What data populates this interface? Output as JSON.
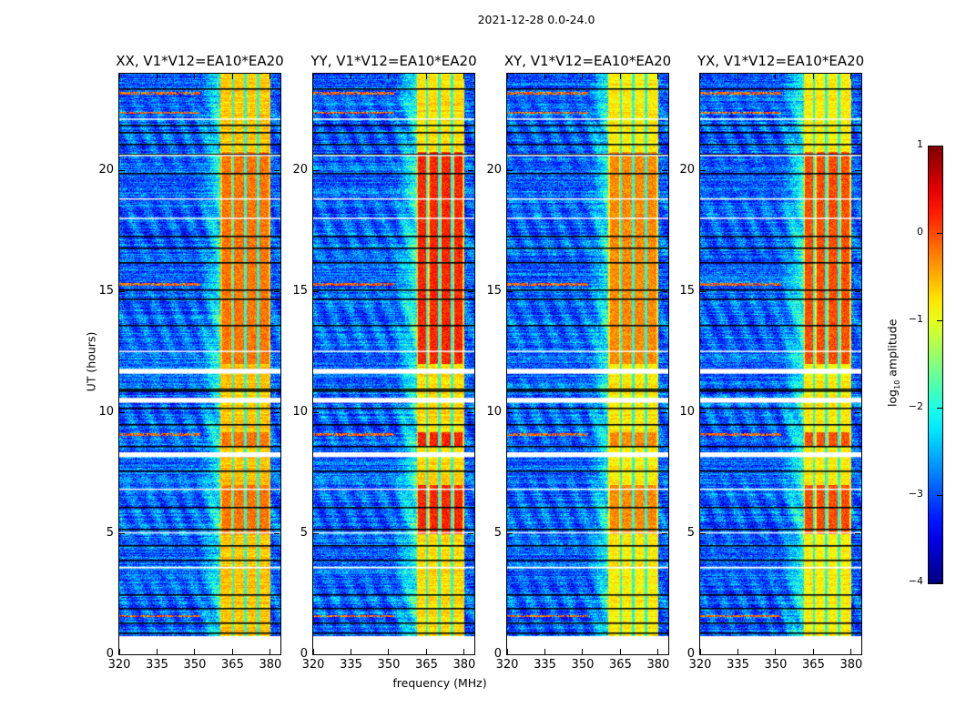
{
  "suptitle": "2021-12-28 0.0-24.0",
  "xlabel": "frequency (MHz)",
  "ylabel": "UT (hours)",
  "colorbar": {
    "label_main": "log",
    "label_sub": "10",
    "label_rest": " amplitude",
    "ticks": [
      "1",
      "0",
      "−1",
      "−2",
      "−3",
      "−4"
    ],
    "tick_values": [
      1,
      0,
      -1,
      -2,
      -3,
      -4
    ],
    "range": [
      -4,
      1
    ],
    "colormap": "jet"
  },
  "chart_data": [
    {
      "type": "heatmap",
      "title": "XX, V1*V12=EA10*EA20",
      "xlim": [
        320,
        384
      ],
      "ylim": [
        0,
        24
      ],
      "x_ticks": [
        "320",
        "335",
        "350",
        "365",
        "380"
      ],
      "y_ticks": [
        "0",
        "5",
        "10",
        "15",
        "20"
      ],
      "band": [
        360,
        380
      ],
      "band_level": -0.6,
      "hot_level": -0.2,
      "background_level": -2.9
    },
    {
      "type": "heatmap",
      "title": "YY, V1*V12=EA10*EA20",
      "xlim": [
        320,
        384
      ],
      "ylim": [
        0,
        24
      ],
      "x_ticks": [
        "320",
        "335",
        "350",
        "365",
        "380"
      ],
      "y_ticks": [
        "0",
        "5",
        "10",
        "15",
        "20"
      ],
      "band": [
        361,
        380
      ],
      "band_level": -0.7,
      "hot_level": 0.2,
      "background_level": -2.9
    },
    {
      "type": "heatmap",
      "title": "XY, V1*V12=EA10*EA20",
      "xlim": [
        320,
        384
      ],
      "ylim": [
        0,
        24
      ],
      "x_ticks": [
        "320",
        "335",
        "350",
        "365",
        "380"
      ],
      "y_ticks": [
        "0",
        "5",
        "10",
        "15",
        "20"
      ],
      "band": [
        360,
        380
      ],
      "band_level": -0.8,
      "hot_level": -0.3,
      "background_level": -2.9
    },
    {
      "type": "heatmap",
      "title": "YX, V1*V12=EA10*EA20",
      "xlim": [
        320,
        384
      ],
      "ylim": [
        0,
        24
      ],
      "x_ticks": [
        "320",
        "335",
        "350",
        "365",
        "380"
      ],
      "y_ticks": [
        "0",
        "5",
        "10",
        "15",
        "20"
      ],
      "band": [
        361,
        380
      ],
      "band_level": -0.8,
      "hot_level": 0.0,
      "background_level": -2.9
    }
  ],
  "flagged_hours_white": [
    [
      11.6,
      11.8
    ],
    [
      10.4,
      10.6
    ],
    [
      8.15,
      8.35
    ],
    [
      3.55,
      3.62
    ],
    [
      5.0,
      5.05
    ],
    [
      6.8,
      6.85
    ],
    [
      12.5,
      12.55
    ],
    [
      18.0,
      18.05
    ],
    [
      18.8,
      18.85
    ],
    [
      20.6,
      20.65
    ],
    [
      22.1,
      22.15
    ],
    [
      0,
      0.75
    ]
  ],
  "black_line_hours": [
    0.9,
    1.3,
    1.9,
    2.5,
    3.9,
    4.5,
    5.2,
    6.1,
    7.6,
    8.6,
    9.5,
    10.2,
    10.9,
    11.0,
    13.6,
    14.7,
    15.1,
    16.2,
    16.8,
    17.3,
    19.9,
    20.7,
    21.1,
    21.6,
    21.9,
    23.4
  ]
}
